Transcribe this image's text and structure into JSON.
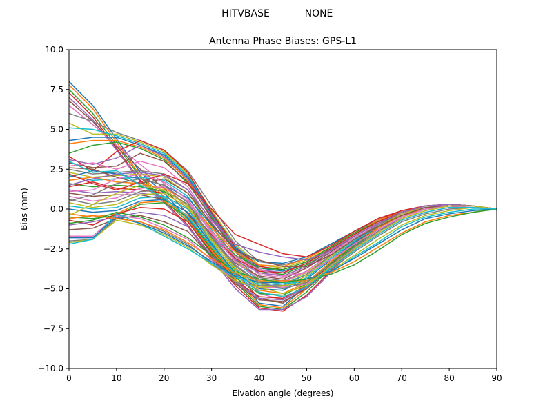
{
  "figure": {
    "suptitle_left": "HITVBASE",
    "suptitle_right": "NONE"
  },
  "chart_data": {
    "type": "line",
    "title": "Antenna Phase Biases: GPS-L1",
    "xlabel": "Elvation angle (degrees)",
    "ylabel": "Bias (mm)",
    "xlim": [
      0,
      90
    ],
    "ylim": [
      -10,
      10
    ],
    "xticks": [
      0,
      10,
      20,
      30,
      40,
      50,
      60,
      70,
      80,
      90
    ],
    "xtick_labels": [
      "0",
      "10",
      "20",
      "30",
      "40",
      "50",
      "60",
      "70",
      "80",
      "90"
    ],
    "yticks": [
      -10,
      -7.5,
      -5,
      -2.5,
      0,
      2.5,
      5,
      7.5,
      10
    ],
    "ytick_labels": [
      "−10.0",
      "−7.5",
      "−5.0",
      "−2.5",
      "0.0",
      "2.5",
      "5.0",
      "7.5",
      "10.0"
    ],
    "grid": false,
    "legend": "none",
    "colors": [
      "#1f77b4",
      "#ff7f0e",
      "#2ca02c",
      "#d62728",
      "#9467bd",
      "#8c564b",
      "#e377c2",
      "#7f7f7f",
      "#bcbd22",
      "#17becf"
    ],
    "x": [
      0,
      5,
      10,
      15,
      20,
      25,
      30,
      35,
      40,
      45,
      50,
      55,
      60,
      65,
      70,
      75,
      80,
      85,
      90
    ],
    "series": [
      {
        "values": [
          8.0,
          6.5,
          4.4,
          2.3,
          1.0,
          -0.6,
          -2.5,
          -4.2,
          -5.9,
          -6.1,
          -4.8,
          -3.4,
          -2.0,
          -0.9,
          -0.2,
          0.2,
          0.3,
          0.2,
          0.0
        ]
      },
      {
        "values": [
          7.8,
          6.3,
          4.2,
          2.1,
          0.8,
          -0.7,
          -2.6,
          -4.4,
          -6.0,
          -6.2,
          -5.0,
          -3.5,
          -2.1,
          -1.0,
          -0.3,
          0.2,
          0.3,
          0.2,
          0.0
        ]
      },
      {
        "values": [
          7.5,
          6.0,
          4.0,
          2.0,
          0.6,
          -0.8,
          -2.8,
          -4.6,
          -6.1,
          -6.3,
          -5.2,
          -3.7,
          -2.2,
          -1.1,
          -0.3,
          0.1,
          0.3,
          0.2,
          0.0
        ]
      },
      {
        "values": [
          7.3,
          5.8,
          3.8,
          1.8,
          0.5,
          -1.0,
          -3.0,
          -4.8,
          -6.2,
          -6.4,
          -5.4,
          -3.9,
          -2.3,
          -1.1,
          -0.4,
          0.1,
          0.2,
          0.2,
          0.0
        ]
      },
      {
        "values": [
          7.0,
          5.6,
          3.7,
          1.7,
          0.4,
          -1.1,
          -3.1,
          -5.0,
          -6.3,
          -6.3,
          -5.5,
          -4.0,
          -2.4,
          -1.2,
          -0.4,
          0.1,
          0.2,
          0.2,
          0.0
        ]
      },
      {
        "values": [
          6.8,
          5.5,
          3.9,
          2.5,
          1.3,
          -0.3,
          -2.2,
          -4.0,
          -5.6,
          -5.9,
          -4.9,
          -3.5,
          -2.1,
          -1.0,
          -0.3,
          0.1,
          0.2,
          0.2,
          0.0
        ]
      },
      {
        "values": [
          6.5,
          5.3,
          4.0,
          2.8,
          1.6,
          0.0,
          -1.9,
          -3.7,
          -5.3,
          -5.7,
          -4.8,
          -3.4,
          -2.0,
          -0.9,
          -0.2,
          0.2,
          0.3,
          0.2,
          0.0
        ]
      },
      {
        "values": [
          6.0,
          5.5,
          4.8,
          4.3,
          3.7,
          2.4,
          0.2,
          -2.0,
          -3.3,
          -3.5,
          -3.1,
          -2.3,
          -1.4,
          -0.6,
          -0.1,
          0.2,
          0.3,
          0.2,
          0.0
        ]
      },
      {
        "values": [
          5.4,
          4.7,
          4.7,
          4.2,
          3.6,
          2.2,
          -0.1,
          -2.2,
          -3.5,
          -3.7,
          -3.2,
          -2.4,
          -1.5,
          -0.7,
          -0.1,
          0.2,
          0.3,
          0.2,
          0.0
        ]
      },
      {
        "values": [
          5.1,
          5.0,
          4.6,
          4.1,
          3.5,
          2.1,
          -0.2,
          -2.3,
          -3.6,
          -3.8,
          -3.3,
          -2.4,
          -1.5,
          -0.7,
          -0.2,
          0.2,
          0.3,
          0.2,
          0.0
        ]
      },
      {
        "values": [
          4.3,
          4.5,
          4.5,
          4.0,
          3.4,
          2.0,
          -0.3,
          -2.4,
          -3.7,
          -3.9,
          -3.4,
          -2.5,
          -1.6,
          -0.8,
          -0.2,
          0.2,
          0.3,
          0.2,
          0.0
        ]
      },
      {
        "values": [
          4.1,
          4.3,
          4.3,
          3.9,
          3.2,
          1.8,
          -0.4,
          -2.5,
          -3.8,
          -4.0,
          -3.4,
          -2.5,
          -1.6,
          -0.8,
          -0.2,
          0.2,
          0.3,
          0.2,
          0.0
        ]
      },
      {
        "values": [
          3.5,
          4.0,
          4.2,
          3.8,
          3.1,
          1.6,
          -0.5,
          -2.6,
          -3.9,
          -4.1,
          -3.5,
          -2.6,
          -1.7,
          -0.9,
          -0.2,
          0.2,
          0.3,
          0.2,
          0.0
        ]
      },
      {
        "values": [
          3.3,
          2.4,
          3.6,
          4.3,
          3.7,
          2.3,
          -0.2,
          -2.4,
          -3.6,
          -3.8,
          -3.3,
          -2.4,
          -1.5,
          -0.7,
          -0.1,
          0.2,
          0.3,
          0.2,
          0.0
        ]
      },
      {
        "values": [
          3.1,
          2.8,
          3.2,
          4.0,
          3.3,
          1.9,
          -0.4,
          -2.5,
          -3.8,
          -4.0,
          -3.4,
          -2.5,
          -1.6,
          -0.8,
          -0.2,
          0.2,
          0.3,
          0.2,
          0.0
        ]
      },
      {
        "values": [
          2.9,
          2.6,
          2.7,
          3.5,
          3.0,
          1.7,
          -0.6,
          -2.7,
          -4.0,
          -4.2,
          -3.6,
          -2.6,
          -1.7,
          -0.9,
          -0.2,
          0.2,
          0.3,
          0.2,
          0.0
        ]
      },
      {
        "values": [
          2.7,
          2.9,
          2.5,
          3.0,
          2.6,
          1.4,
          -0.8,
          -2.9,
          -4.1,
          -4.3,
          -3.7,
          -2.7,
          -1.7,
          -0.9,
          -0.3,
          0.1,
          0.3,
          0.2,
          0.0
        ]
      },
      {
        "values": [
          2.5,
          2.2,
          2.3,
          2.4,
          2.2,
          1.2,
          -1.0,
          -3.1,
          -4.3,
          -4.5,
          -3.9,
          -2.8,
          -1.8,
          -1.0,
          -0.3,
          0.1,
          0.2,
          0.2,
          0.0
        ]
      },
      {
        "values": [
          2.3,
          2.0,
          2.1,
          2.2,
          2.0,
          1.0,
          -1.1,
          -3.2,
          -4.4,
          -4.6,
          -4.0,
          -2.9,
          -1.9,
          -1.0,
          -0.3,
          0.1,
          0.2,
          0.2,
          0.0
        ]
      },
      {
        "values": [
          2.1,
          1.8,
          1.9,
          2.0,
          1.8,
          0.8,
          -1.3,
          -3.3,
          -4.5,
          -4.7,
          -4.1,
          -3.0,
          -1.9,
          -1.0,
          -0.3,
          0.1,
          0.2,
          0.2,
          0.0
        ]
      },
      {
        "values": [
          2.0,
          2.4,
          2.2,
          1.9,
          1.5,
          0.7,
          -1.0,
          -2.5,
          -3.3,
          -3.4,
          -3.0,
          -2.2,
          -1.4,
          -0.7,
          -0.2,
          0.2,
          0.3,
          0.2,
          0.0
        ]
      },
      {
        "values": [
          1.8,
          2.0,
          1.7,
          1.6,
          1.3,
          0.5,
          -1.2,
          -2.7,
          -3.5,
          -3.6,
          -3.1,
          -2.3,
          -1.5,
          -0.7,
          -0.2,
          0.2,
          0.3,
          0.2,
          0.0
        ]
      },
      {
        "values": [
          1.6,
          1.4,
          1.5,
          1.4,
          1.1,
          0.3,
          -1.4,
          -2.9,
          -3.7,
          -3.8,
          -3.3,
          -2.4,
          -1.5,
          -0.8,
          -0.2,
          0.2,
          0.3,
          0.2,
          0.0
        ]
      },
      {
        "values": [
          1.4,
          1.7,
          1.3,
          1.2,
          1.0,
          0.1,
          -1.6,
          -3.1,
          -3.9,
          -4.0,
          -3.4,
          -2.5,
          -1.6,
          -0.8,
          -0.2,
          0.2,
          0.3,
          0.2,
          0.0
        ]
      },
      {
        "values": [
          1.2,
          1.0,
          1.1,
          1.0,
          0.8,
          0.0,
          -1.7,
          -3.2,
          -4.0,
          -4.2,
          -3.6,
          -2.6,
          -1.7,
          -0.9,
          -0.2,
          0.2,
          0.3,
          0.2,
          0.0
        ]
      },
      {
        "values": [
          1.0,
          0.8,
          0.9,
          0.9,
          0.6,
          -0.2,
          -1.9,
          -3.4,
          -4.2,
          -4.4,
          -3.7,
          -2.7,
          -1.7,
          -0.9,
          -0.3,
          0.1,
          0.2,
          0.2,
          0.0
        ]
      },
      {
        "values": [
          0.8,
          0.5,
          0.7,
          1.3,
          1.4,
          0.5,
          -1.5,
          -3.3,
          -4.4,
          -4.6,
          -3.9,
          -2.8,
          -1.8,
          -1.0,
          -0.3,
          0.1,
          0.2,
          0.2,
          0.0
        ]
      },
      {
        "values": [
          0.6,
          0.3,
          0.5,
          1.1,
          1.2,
          0.3,
          -1.7,
          -3.5,
          -4.6,
          -4.8,
          -4.1,
          -2.9,
          -1.9,
          -1.0,
          -0.3,
          0.1,
          0.2,
          0.2,
          0.0
        ]
      },
      {
        "values": [
          0.4,
          0.1,
          0.3,
          0.9,
          1.0,
          0.1,
          -1.9,
          -3.7,
          -4.7,
          -4.9,
          -4.2,
          -3.0,
          -2.0,
          -1.1,
          -0.3,
          0.1,
          0.2,
          0.2,
          0.0
        ]
      },
      {
        "values": [
          0.2,
          0.0,
          0.1,
          0.7,
          0.8,
          0.0,
          -2.1,
          -3.8,
          -4.8,
          -5.0,
          -4.3,
          -3.1,
          -2.0,
          -1.1,
          -0.4,
          0.1,
          0.2,
          0.2,
          0.0
        ]
      },
      {
        "values": [
          0.0,
          -0.2,
          -0.1,
          0.5,
          0.6,
          -0.2,
          -2.2,
          -4.0,
          -5.0,
          -5.1,
          -4.4,
          -3.2,
          -2.1,
          -1.2,
          -0.4,
          0.0,
          0.2,
          0.2,
          0.0
        ]
      },
      {
        "values": [
          -0.3,
          -0.5,
          -0.3,
          0.4,
          0.5,
          -0.4,
          -2.4,
          -4.2,
          -5.1,
          -5.3,
          -4.6,
          -3.3,
          -2.2,
          -1.2,
          -0.4,
          0.0,
          0.2,
          0.2,
          0.0
        ]
      },
      {
        "values": [
          -0.5,
          -0.6,
          -0.4,
          0.3,
          0.4,
          -0.5,
          -2.5,
          -4.3,
          -5.3,
          -5.4,
          -4.7,
          -3.4,
          -2.3,
          -1.3,
          -0.5,
          0.0,
          0.2,
          0.2,
          0.0
        ]
      },
      {
        "values": [
          -0.7,
          -1.0,
          -0.3,
          0.1,
          0.0,
          -0.8,
          -2.7,
          -4.5,
          -5.5,
          -5.6,
          -4.8,
          -3.5,
          -2.4,
          -1.4,
          -0.5,
          0.0,
          0.2,
          0.2,
          0.0
        ]
      },
      {
        "values": [
          -1.0,
          -0.8,
          -0.5,
          -0.2,
          -0.4,
          -1.1,
          -2.9,
          -4.6,
          -5.6,
          -5.7,
          -4.9,
          -3.6,
          -2.4,
          -1.4,
          -0.5,
          0.0,
          0.2,
          0.2,
          0.0
        ]
      },
      {
        "values": [
          -1.3,
          -1.2,
          -0.6,
          -0.4,
          -0.8,
          -1.4,
          -3.0,
          -4.7,
          -5.7,
          -5.8,
          -5.0,
          -3.7,
          -2.5,
          -1.5,
          -0.6,
          -0.1,
          0.2,
          0.2,
          0.0
        ]
      },
      {
        "values": [
          -1.7,
          -1.7,
          -0.4,
          -0.6,
          -1.2,
          -1.9,
          -3.2,
          -4.6,
          -4.9,
          -4.9,
          -4.7,
          -3.7,
          -2.6,
          -1.6,
          -0.7,
          -0.2,
          0.1,
          0.2,
          0.0
        ]
      },
      {
        "values": [
          -2.0,
          -1.9,
          -0.6,
          -0.8,
          -1.4,
          -2.2,
          -3.4,
          -4.6,
          -4.8,
          -4.8,
          -4.6,
          -3.8,
          -2.7,
          -1.7,
          -0.8,
          -0.3,
          0.0,
          0.1,
          0.0
        ]
      },
      {
        "values": [
          -2.1,
          -1.9,
          -0.7,
          -1.0,
          -1.6,
          -2.4,
          -3.5,
          -4.5,
          -4.9,
          -4.8,
          -4.6,
          -3.9,
          -2.9,
          -1.9,
          -1.0,
          -0.4,
          -0.1,
          0.1,
          0.0
        ]
      },
      {
        "values": [
          -2.2,
          -1.9,
          -0.3,
          -0.9,
          -1.7,
          -2.5,
          -3.4,
          -4.3,
          -4.7,
          -4.7,
          -4.5,
          -4.0,
          -3.0,
          -2.1,
          -1.1,
          -0.5,
          -0.2,
          0.0,
          0.0
        ]
      },
      {
        "values": [
          -1.8,
          -1.8,
          -0.5,
          -0.9,
          -1.5,
          -2.3,
          -3.3,
          -4.2,
          -4.6,
          -4.6,
          -4.4,
          -3.9,
          -3.1,
          -2.2,
          -1.3,
          -0.6,
          -0.3,
          -0.1,
          0.0
        ]
      },
      {
        "values": [
          -0.6,
          -0.4,
          -0.6,
          -0.8,
          -1.3,
          -2.1,
          -3.1,
          -4.0,
          -4.5,
          -4.5,
          -4.5,
          -4.0,
          -3.3,
          -2.4,
          -1.5,
          -0.8,
          -0.4,
          -0.2,
          0.0
        ]
      },
      {
        "values": [
          -0.9,
          -0.7,
          -0.2,
          -0.5,
          -1.0,
          -1.8,
          -2.9,
          -3.9,
          -4.4,
          -4.6,
          -4.4,
          -4.1,
          -3.5,
          -2.6,
          -1.6,
          -0.9,
          -0.5,
          -0.2,
          0.0
        ]
      },
      {
        "values": [
          2.2,
          1.6,
          1.2,
          1.7,
          2.2,
          1.6,
          0.0,
          -1.6,
          -2.2,
          -2.8,
          -3.0,
          -2.3,
          -1.4,
          -0.6,
          -0.1,
          0.2,
          0.3,
          0.2,
          0.0
        ]
      },
      {
        "values": [
          1.5,
          1.9,
          2.2,
          2.3,
          2.1,
          1.2,
          -0.7,
          -2.2,
          -2.7,
          -3.0,
          -3.2,
          -2.6,
          -1.7,
          -0.9,
          -0.2,
          0.2,
          0.3,
          0.2,
          0.0
        ]
      },
      {
        "values": [
          2.6,
          2.5,
          2.0,
          1.6,
          1.9,
          1.0,
          -0.9,
          -2.6,
          -3.2,
          -3.6,
          -3.6,
          -2.9,
          -1.9,
          -1.1,
          -0.4,
          0.1,
          0.2,
          0.2,
          0.0
        ]
      },
      {
        "values": [
          1.1,
          1.2,
          1.9,
          2.2,
          1.7,
          0.6,
          -1.4,
          -3.0,
          -3.8,
          -4.2,
          -4.0,
          -3.2,
          -2.2,
          -1.3,
          -0.5,
          0.0,
          0.2,
          0.2,
          0.0
        ]
      },
      {
        "values": [
          0.5,
          0.9,
          1.6,
          1.9,
          1.5,
          0.4,
          -1.8,
          -3.6,
          -4.6,
          -5.0,
          -4.6,
          -3.5,
          -2.4,
          -1.4,
          -0.6,
          -0.1,
          0.2,
          0.2,
          0.0
        ]
      },
      {
        "values": [
          -0.4,
          0.3,
          1.0,
          1.5,
          1.2,
          0.2,
          -2.0,
          -3.9,
          -4.9,
          -5.3,
          -4.8,
          -3.6,
          -2.5,
          -1.5,
          -0.6,
          -0.1,
          0.2,
          0.2,
          0.0
        ]
      },
      {
        "values": [
          3.0,
          2.3,
          2.4,
          1.5,
          0.7,
          -0.5,
          -2.3,
          -4.1,
          -5.2,
          -5.5,
          -4.9,
          -3.7,
          -2.6,
          -1.6,
          -0.7,
          -0.2,
          0.1,
          0.1,
          0.0
        ]
      }
    ]
  }
}
